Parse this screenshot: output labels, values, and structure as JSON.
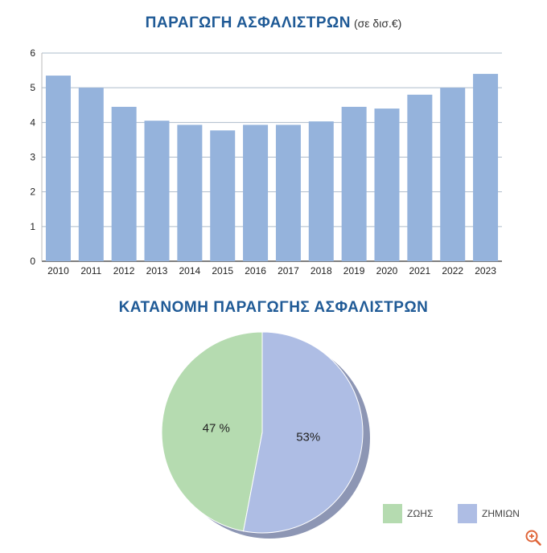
{
  "chart_data": [
    {
      "type": "bar",
      "title": "ΠΑΡΑΓΩΓΗ ΑΣΦΑΛΙΣΤΡΩΝ",
      "unit": "(σε δισ.€)",
      "categories": [
        "2010",
        "2011",
        "2012",
        "2013",
        "2014",
        "2015",
        "2016",
        "2017",
        "2018",
        "2019",
        "2020",
        "2021",
        "2022",
        "2023"
      ],
      "values": [
        5.35,
        5.0,
        4.45,
        4.05,
        3.93,
        3.77,
        3.93,
        3.93,
        4.03,
        4.45,
        4.4,
        4.8,
        5.0,
        5.4
      ],
      "ylim": [
        0,
        6
      ],
      "yticks": [
        0,
        1,
        2,
        3,
        4,
        5,
        6
      ],
      "grid": true,
      "color": "#95b3dc"
    },
    {
      "type": "pie",
      "title": "ΚΑΤΑΝΟΜΗ ΠΑΡΑΓΩΓΗΣ ΑΣΦΑΛΙΣΤΡΩΝ",
      "slices": [
        {
          "label": "ΖΩΗΣ",
          "value": 47,
          "display": "47 %",
          "color": "#b5dbb0"
        },
        {
          "label": "ΖΗΜΙΩΝ",
          "value": 53,
          "display": "53%",
          "color": "#aebde4"
        }
      ],
      "legend_position": "bottom-right"
    }
  ],
  "icons": {
    "zoom": "zoom-in-icon"
  },
  "colors": {
    "title": "#1f5a96",
    "grid": "#aebccb",
    "zoom_icon": "#e0663a"
  }
}
